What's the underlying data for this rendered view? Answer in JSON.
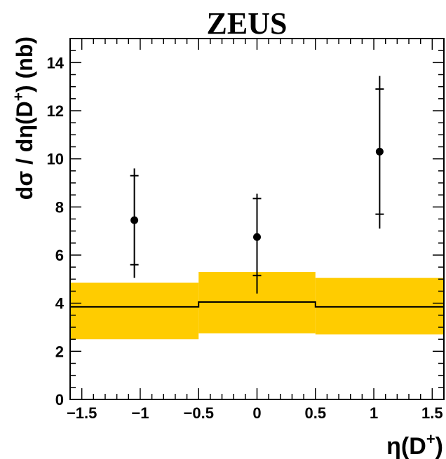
{
  "chart_data": {
    "type": "scatter",
    "title": "ZEUS",
    "xlabel_main": "η(D",
    "xlabel_sup": "+",
    "xlabel_close": ")",
    "ylabel_main": "dσ / dη(D",
    "ylabel_sup": "+",
    "ylabel_close": ") (nb)",
    "xlim": [
      -1.6,
      1.6
    ],
    "ylim": [
      0,
      15
    ],
    "x_ticks": [
      -1.5,
      -1,
      -0.5,
      0,
      0.5,
      1,
      1.5
    ],
    "x_tick_labels": [
      "−1.5",
      "−1",
      "−0.5",
      "0",
      "0.5",
      "1",
      "1.5"
    ],
    "y_ticks": [
      0,
      2,
      4,
      6,
      8,
      10,
      12,
      14
    ],
    "y_tick_labels": [
      "0",
      "2",
      "4",
      "6",
      "8",
      "10",
      "12",
      "14"
    ],
    "grid": false,
    "data_points": [
      {
        "x": -1.05,
        "y": 7.45,
        "stat_low": 5.6,
        "stat_high": 9.3,
        "tot_low": 5.05,
        "tot_high": 9.6
      },
      {
        "x": 0.0,
        "y": 6.75,
        "stat_low": 5.15,
        "stat_high": 8.35,
        "tot_low": 4.4,
        "tot_high": 8.55
      },
      {
        "x": 1.05,
        "y": 10.3,
        "stat_low": 7.7,
        "stat_high": 12.9,
        "tot_low": 7.1,
        "tot_high": 13.45
      }
    ],
    "theory": [
      {
        "x_low": -1.6,
        "x_high": -0.5,
        "central": 3.85,
        "low": 2.5,
        "high": 4.85
      },
      {
        "x_low": -0.5,
        "x_high": 0.5,
        "central": 4.05,
        "low": 2.75,
        "high": 5.3
      },
      {
        "x_low": 0.5,
        "x_high": 1.6,
        "central": 3.85,
        "low": 2.7,
        "high": 5.05
      }
    ],
    "colors": {
      "band": "#ffcc00",
      "line": "#000000",
      "points": "#000000"
    }
  }
}
